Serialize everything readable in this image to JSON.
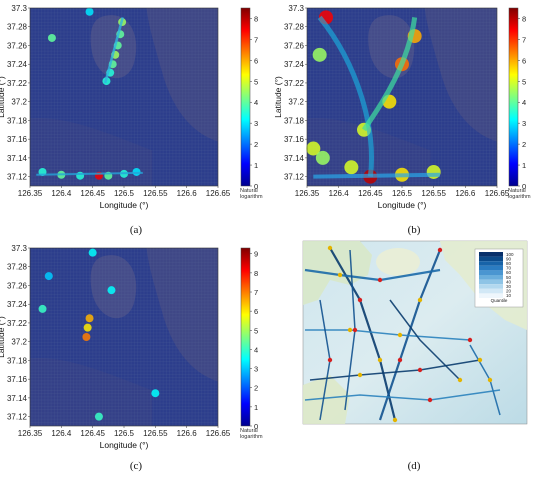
{
  "chart_data": [
    {
      "panel": "(a)",
      "type": "heatmap",
      "xlabel": "Longitude (°)",
      "ylabel": "Latitude (°)",
      "xlim": [
        126.35,
        126.65
      ],
      "ylim": [
        37.11,
        37.3
      ],
      "xticks": [
        "126.35",
        "126.4",
        "126.45",
        "126.5",
        "126.55",
        "126.6",
        "126.65"
      ],
      "yticks": [
        "37.12",
        "37.14",
        "37.16",
        "37.18",
        "37.2",
        "37.22",
        "37.24",
        "37.26",
        "37.28",
        "37.3"
      ],
      "colorbar": {
        "ticks": [
          "0",
          "1",
          "2",
          "3",
          "4",
          "5",
          "6",
          "7",
          "8"
        ],
        "label_line1": "Natural",
        "label_line2": "logarithm",
        "max": 8.5
      },
      "hotspots": [
        {
          "x": 126.497,
          "y": 37.285,
          "v": 4.5
        },
        {
          "x": 126.494,
          "y": 37.272,
          "v": 4.0
        },
        {
          "x": 126.49,
          "y": 37.26,
          "v": 4.0
        },
        {
          "x": 126.486,
          "y": 37.25,
          "v": 4.5
        },
        {
          "x": 126.482,
          "y": 37.24,
          "v": 4.0
        },
        {
          "x": 126.478,
          "y": 37.231,
          "v": 3.5
        },
        {
          "x": 126.472,
          "y": 37.222,
          "v": 3.5
        },
        {
          "x": 126.385,
          "y": 37.268,
          "v": 4.0
        },
        {
          "x": 126.445,
          "y": 37.296,
          "v": 3.0
        },
        {
          "x": 126.37,
          "y": 37.125,
          "v": 3.5
        },
        {
          "x": 126.4,
          "y": 37.122,
          "v": 4.0
        },
        {
          "x": 126.43,
          "y": 37.121,
          "v": 3.5
        },
        {
          "x": 126.46,
          "y": 37.121,
          "v": 7.5
        },
        {
          "x": 126.475,
          "y": 37.121,
          "v": 4.0
        },
        {
          "x": 126.5,
          "y": 37.123,
          "v": 3.5
        },
        {
          "x": 126.52,
          "y": 37.125,
          "v": 3.0
        }
      ]
    },
    {
      "panel": "(b)",
      "type": "heatmap",
      "xlabel": "Longitude (°)",
      "ylabel": "Latitude (°)",
      "xlim": [
        126.35,
        126.65
      ],
      "ylim": [
        37.11,
        37.3
      ],
      "xticks": [
        "126.35",
        "126.4",
        "126.45",
        "126.5",
        "126.55",
        "126.6",
        "126.65"
      ],
      "yticks": [
        "37.12",
        "37.14",
        "37.16",
        "37.18",
        "37.2",
        "37.22",
        "37.24",
        "37.26",
        "37.28",
        "37.3"
      ],
      "colorbar": {
        "ticks": [
          "0",
          "1",
          "2",
          "3",
          "4",
          "5",
          "6",
          "7",
          "8"
        ],
        "label_line1": "Natural",
        "label_line2": "logarithm",
        "max": 8.5
      },
      "hotspots": [
        {
          "x": 126.38,
          "y": 37.29,
          "v": 7.5
        },
        {
          "x": 126.37,
          "y": 37.25,
          "v": 4.5
        },
        {
          "x": 126.36,
          "y": 37.15,
          "v": 5.0
        },
        {
          "x": 126.375,
          "y": 37.14,
          "v": 4.5
        },
        {
          "x": 126.42,
          "y": 37.13,
          "v": 5.0
        },
        {
          "x": 126.45,
          "y": 37.12,
          "v": 8.0
        },
        {
          "x": 126.5,
          "y": 37.122,
          "v": 5.5
        },
        {
          "x": 126.55,
          "y": 37.125,
          "v": 5.0
        },
        {
          "x": 126.52,
          "y": 37.27,
          "v": 6.0
        },
        {
          "x": 126.5,
          "y": 37.24,
          "v": 6.5
        },
        {
          "x": 126.48,
          "y": 37.2,
          "v": 5.5
        },
        {
          "x": 126.44,
          "y": 37.17,
          "v": 5.0
        }
      ]
    },
    {
      "panel": "(c)",
      "type": "heatmap",
      "xlabel": "Longitude (°)",
      "ylabel": "Latitude (°)",
      "xlim": [
        126.35,
        126.65
      ],
      "ylim": [
        37.11,
        37.3
      ],
      "xticks": [
        "126.35",
        "126.4",
        "126.45",
        "126.5",
        "126.55",
        "126.6",
        "126.65"
      ],
      "yticks": [
        "37.12",
        "37.14",
        "37.16",
        "37.18",
        "37.2",
        "37.22",
        "37.24",
        "37.26",
        "37.28",
        "37.3"
      ],
      "colorbar": {
        "ticks": [
          "0",
          "1",
          "2",
          "3",
          "4",
          "5",
          "6",
          "7",
          "8",
          "9"
        ],
        "label_line1": "Natural",
        "label_line2": "logarithm",
        "max": 9.3
      },
      "hotspots": [
        {
          "x": 126.445,
          "y": 37.225,
          "v": 6.5
        },
        {
          "x": 126.442,
          "y": 37.215,
          "v": 6.0
        },
        {
          "x": 126.44,
          "y": 37.205,
          "v": 7.0
        },
        {
          "x": 126.37,
          "y": 37.235,
          "v": 4.0
        },
        {
          "x": 126.45,
          "y": 37.295,
          "v": 3.5
        },
        {
          "x": 126.48,
          "y": 37.255,
          "v": 3.5
        },
        {
          "x": 126.46,
          "y": 37.12,
          "v": 4.0
        },
        {
          "x": 126.55,
          "y": 37.145,
          "v": 3.5
        },
        {
          "x": 126.38,
          "y": 37.27,
          "v": 3.0
        }
      ]
    }
  ],
  "panel_d": {
    "legend_ticks": [
      "100",
      "90",
      "80",
      "70",
      "60",
      "50",
      "40",
      "30",
      "20",
      "10"
    ],
    "legend_title": "Quantile"
  },
  "captions": [
    "(a)",
    "(b)",
    "(c)",
    "(d)"
  ]
}
